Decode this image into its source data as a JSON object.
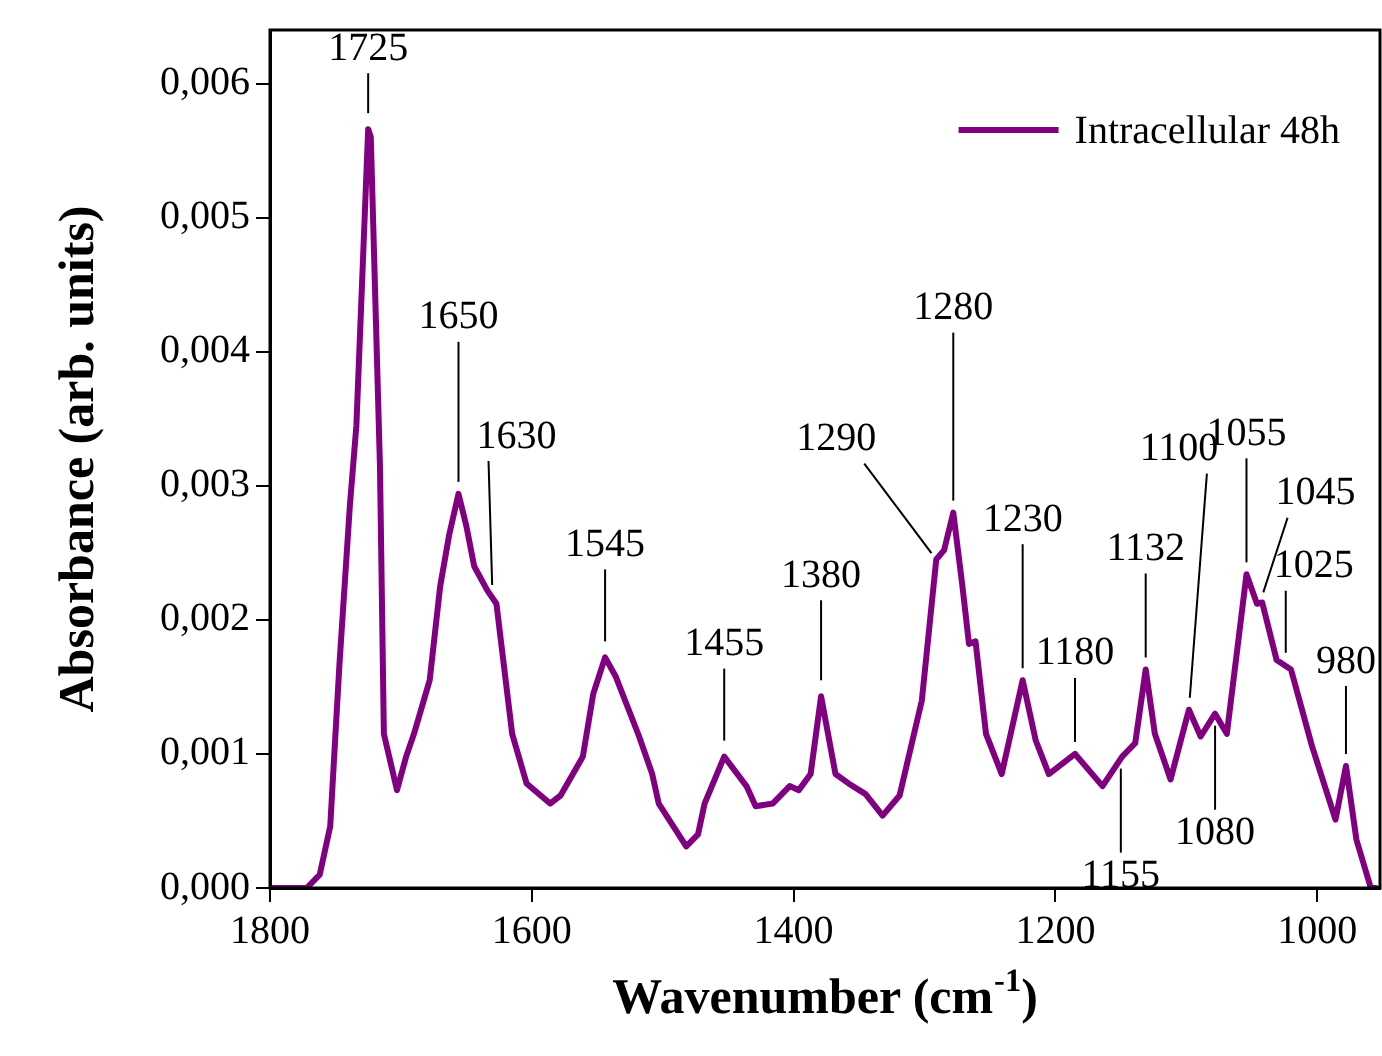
{
  "chart_data": {
    "type": "line",
    "xlabel": "Wavenumber (cm$^{-1}$)",
    "ylabel": "Absorbance (arb. units)",
    "xlim": [
      1800,
      952
    ],
    "xticks": [
      1800,
      1600,
      1400,
      1200,
      1000
    ],
    "ylim": [
      0,
      0.0064
    ],
    "yticks": [
      {
        "value": 0,
        "label": "0,000"
      },
      {
        "value": 0.001,
        "label": "0,001"
      },
      {
        "value": 0.002,
        "label": "0,002"
      },
      {
        "value": 0.003,
        "label": "0,003"
      },
      {
        "value": 0.004,
        "label": "0,004"
      },
      {
        "value": 0.005,
        "label": "0,005"
      },
      {
        "value": 0.006,
        "label": "0,006"
      }
    ],
    "legend": "top right",
    "grid": false,
    "marker": "none",
    "line_style": "solid",
    "x": [
      1800,
      1772,
      1762,
      1754,
      1747,
      1739,
      1734,
      1725,
      1723,
      1716,
      1713,
      1703,
      1696,
      1690,
      1678,
      1670,
      1663,
      1656,
      1650,
      1644,
      1634,
      1627,
      1615,
      1604,
      1586,
      1578,
      1561,
      1553,
      1544,
      1536,
      1518,
      1508,
      1503,
      1482,
      1473,
      1468,
      1453,
      1436,
      1429,
      1416,
      1403,
      1396,
      1387,
      1379,
      1368,
      1358,
      1345,
      1332,
      1319,
      1302,
      1291,
      1285,
      1278,
      1271,
      1266,
      1261,
      1253,
      1241,
      1225,
      1215,
      1205,
      1185,
      1164,
      1149,
      1139,
      1131,
      1124,
      1112,
      1098,
      1089,
      1078,
      1069,
      1054,
      1046,
      1042,
      1031,
      1020,
      1004,
      986,
      978,
      970,
      959,
      955
    ],
    "series": [
      {
        "name": "Intracellular 48h",
        "color": "#800080",
        "values": [
          0,
          0,
          0.0001,
          0.00046,
          0.00166,
          0.00285,
          0.00345,
          0.00566,
          0.0056,
          0.00315,
          0.00115,
          0.00073,
          0.00098,
          0.00115,
          0.00155,
          0.00225,
          0.00264,
          0.00294,
          0.0027,
          0.0024,
          0.00222,
          0.00212,
          0.00115,
          0.00078,
          0.00063,
          0.00069,
          0.00098,
          0.00145,
          0.00172,
          0.00158,
          0.00113,
          0.00085,
          0.00063,
          0.00031,
          0.0004,
          0.00063,
          0.00098,
          0.00076,
          0.00061,
          0.00063,
          0.00076,
          0.00073,
          0.00085,
          0.00143,
          0.00085,
          0.00078,
          0.0007,
          0.00054,
          0.00069,
          0.0014,
          0.00245,
          0.00252,
          0.0028,
          0.00225,
          0.00182,
          0.00184,
          0.00115,
          0.00085,
          0.00155,
          0.0011,
          0.00085,
          0.001,
          0.00076,
          0.00098,
          0.00108,
          0.00163,
          0.00115,
          0.00081,
          0.00133,
          0.00113,
          0.0013,
          0.00115,
          0.00234,
          0.00212,
          0.00213,
          0.0017,
          0.00163,
          0.00106,
          0.00051,
          0.00091,
          0.00036,
          0,
          0
        ]
      }
    ],
    "annotations": [
      {
        "text": "1725",
        "x": 1725,
        "y": 0.00566
      },
      {
        "text": "1650",
        "x": 1656,
        "y": 0.00294
      },
      {
        "text": "1630",
        "x": 1630,
        "y": 0.00217
      },
      {
        "text": "1545",
        "x": 1544,
        "y": 0.00172
      },
      {
        "text": "1455",
        "x": 1453,
        "y": 0.00098
      },
      {
        "text": "1380",
        "x": 1379,
        "y": 0.00143
      },
      {
        "text": "1290",
        "x": 1291,
        "y": 0.00245
      },
      {
        "text": "1280",
        "x": 1278,
        "y": 0.0028
      },
      {
        "text": "1230",
        "x": 1225,
        "y": 0.00155
      },
      {
        "text": "1180",
        "x": 1185,
        "y": 0.001
      },
      {
        "text": "1155",
        "x": 1150,
        "y": 0.00098
      },
      {
        "text": "1132",
        "x": 1131,
        "y": 0.00163
      },
      {
        "text": "1100",
        "x": 1098,
        "y": 0.00133
      },
      {
        "text": "1080",
        "x": 1078,
        "y": 0.0013
      },
      {
        "text": "1055",
        "x": 1054,
        "y": 0.00234
      },
      {
        "text": "1045",
        "x": 1044,
        "y": 0.00212
      },
      {
        "text": "1025",
        "x": 1024,
        "y": 0.00168
      },
      {
        "text": "980",
        "x": 978,
        "y": 0.00091
      }
    ]
  }
}
